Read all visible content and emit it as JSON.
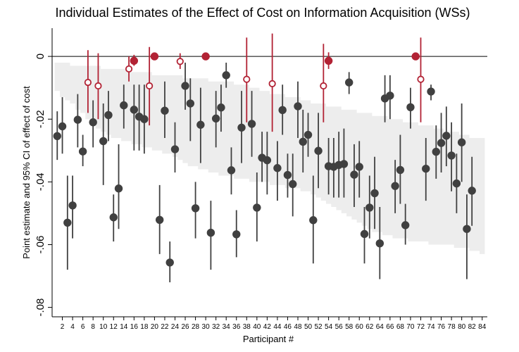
{
  "chart_data": {
    "type": "scatter",
    "title": "Individual Estimates of the Effect of Cost on Information Acquisition (WSs)",
    "xlabel": "Participant #",
    "ylabel": "Point estimate and 95% CI of effect of cost",
    "xlim": [
      0,
      85
    ],
    "ylim": [
      -0.083,
      0.009
    ],
    "yticks": [
      0,
      -0.02,
      -0.04,
      -0.06,
      -0.08
    ],
    "ytick_labels": [
      "0",
      "-.02",
      "-.04",
      "-.06",
      "-.08"
    ],
    "xticks": [
      2,
      4,
      6,
      8,
      10,
      12,
      14,
      16,
      18,
      20,
      22,
      24,
      26,
      28,
      30,
      32,
      34,
      36,
      38,
      40,
      42,
      44,
      46,
      48,
      50,
      52,
      54,
      56,
      58,
      60,
      62,
      64,
      66,
      68,
      70,
      72,
      74,
      76,
      78,
      80,
      82,
      84
    ],
    "reference_line": 0,
    "colors": {
      "significant": "#404040",
      "not_significant": "#b22234",
      "band": "#ededed",
      "zero_line": "#000000"
    },
    "band": [
      [
        1,
        -0.002,
        -0.011
      ],
      [
        2,
        -0.002,
        -0.013
      ],
      [
        3,
        -0.002,
        -0.014
      ],
      [
        4,
        -0.003,
        -0.015
      ],
      [
        5,
        -0.003,
        -0.017
      ],
      [
        6,
        -0.003,
        -0.018
      ],
      [
        7,
        -0.003,
        -0.02
      ],
      [
        8,
        -0.003,
        -0.021
      ],
      [
        9,
        -0.003,
        -0.023
      ],
      [
        10,
        -0.004,
        -0.024
      ],
      [
        11,
        -0.004,
        -0.025
      ],
      [
        12,
        -0.004,
        -0.026
      ],
      [
        13,
        -0.004,
        -0.026
      ],
      [
        14,
        -0.004,
        -0.027
      ],
      [
        15,
        -0.005,
        -0.027
      ],
      [
        16,
        -0.005,
        -0.028
      ],
      [
        17,
        -0.005,
        -0.028
      ],
      [
        18,
        -0.005,
        -0.029
      ],
      [
        19,
        -0.005,
        -0.029
      ],
      [
        20,
        -0.006,
        -0.03
      ],
      [
        21,
        -0.006,
        -0.03
      ],
      [
        22,
        -0.006,
        -0.031
      ],
      [
        23,
        -0.006,
        -0.031
      ],
      [
        24,
        -0.006,
        -0.032
      ],
      [
        25,
        -0.006,
        -0.033
      ],
      [
        26,
        -0.007,
        -0.034
      ],
      [
        27,
        -0.007,
        -0.035
      ],
      [
        28,
        -0.007,
        -0.035
      ],
      [
        29,
        -0.007,
        -0.036
      ],
      [
        30,
        -0.007,
        -0.036
      ],
      [
        31,
        -0.008,
        -0.037
      ],
      [
        32,
        -0.008,
        -0.037
      ],
      [
        33,
        -0.008,
        -0.038
      ],
      [
        34,
        -0.008,
        -0.038
      ],
      [
        35,
        -0.008,
        -0.038
      ],
      [
        36,
        -0.009,
        -0.039
      ],
      [
        37,
        -0.009,
        -0.039
      ],
      [
        38,
        -0.009,
        -0.039
      ],
      [
        39,
        -0.01,
        -0.04
      ],
      [
        40,
        -0.01,
        -0.04
      ],
      [
        41,
        -0.011,
        -0.04
      ],
      [
        42,
        -0.011,
        -0.04
      ],
      [
        43,
        -0.012,
        -0.041
      ],
      [
        44,
        -0.012,
        -0.041
      ],
      [
        45,
        -0.012,
        -0.041
      ],
      [
        46,
        -0.013,
        -0.042
      ],
      [
        47,
        -0.013,
        -0.042
      ],
      [
        48,
        -0.013,
        -0.042
      ],
      [
        49,
        -0.014,
        -0.043
      ],
      [
        50,
        -0.014,
        -0.043
      ],
      [
        51,
        -0.015,
        -0.044
      ],
      [
        52,
        -0.015,
        -0.045
      ],
      [
        53,
        -0.015,
        -0.046
      ],
      [
        54,
        -0.016,
        -0.047
      ],
      [
        55,
        -0.016,
        -0.048
      ],
      [
        56,
        -0.016,
        -0.049
      ],
      [
        57,
        -0.017,
        -0.05
      ],
      [
        58,
        -0.017,
        -0.051
      ],
      [
        59,
        -0.017,
        -0.052
      ],
      [
        60,
        -0.018,
        -0.053
      ],
      [
        61,
        -0.018,
        -0.054
      ],
      [
        62,
        -0.018,
        -0.055
      ],
      [
        63,
        -0.019,
        -0.056
      ],
      [
        64,
        -0.019,
        -0.056
      ],
      [
        65,
        -0.019,
        -0.057
      ],
      [
        66,
        -0.02,
        -0.057
      ],
      [
        67,
        -0.02,
        -0.058
      ],
      [
        68,
        -0.02,
        -0.058
      ],
      [
        69,
        -0.021,
        -0.058
      ],
      [
        70,
        -0.021,
        -0.059
      ],
      [
        71,
        -0.021,
        -0.059
      ],
      [
        72,
        -0.022,
        -0.059
      ],
      [
        73,
        -0.022,
        -0.059
      ],
      [
        74,
        -0.022,
        -0.06
      ],
      [
        75,
        -0.023,
        -0.06
      ],
      [
        76,
        -0.023,
        -0.06
      ],
      [
        77,
        -0.024,
        -0.06
      ],
      [
        78,
        -0.024,
        -0.06
      ],
      [
        79,
        -0.024,
        -0.061
      ],
      [
        80,
        -0.025,
        -0.061
      ],
      [
        81,
        -0.025,
        -0.061
      ],
      [
        82,
        -0.026,
        -0.062
      ],
      [
        83,
        -0.026,
        -0.062
      ],
      [
        84,
        -0.026,
        -0.063
      ]
    ],
    "series": [
      {
        "kind": "significant",
        "points": [
          [
            1,
            -0.0254,
            -0.0175,
            -0.033
          ],
          [
            2,
            -0.0223,
            -0.013,
            -0.031
          ],
          [
            3,
            -0.053,
            -0.038,
            -0.068
          ],
          [
            4,
            -0.0475,
            -0.038,
            -0.058
          ],
          [
            5,
            -0.0202,
            -0.012,
            -0.029
          ],
          [
            6,
            -0.0303,
            -0.025,
            -0.035
          ],
          [
            8,
            -0.021,
            -0.014,
            -0.029
          ],
          [
            10,
            -0.027,
            -0.015,
            -0.041
          ],
          [
            11,
            -0.0187,
            -0.011,
            -0.027
          ],
          [
            12,
            -0.0513,
            -0.044,
            -0.059
          ],
          [
            13,
            -0.0421,
            -0.028,
            -0.055
          ],
          [
            14,
            -0.0156,
            -0.009,
            -0.023
          ],
          [
            16,
            -0.017,
            -0.009,
            -0.03
          ],
          [
            17,
            -0.0192,
            -0.009,
            -0.03
          ],
          [
            18,
            -0.02,
            -0.009,
            -0.031
          ],
          [
            21,
            -0.0521,
            -0.041,
            -0.063
          ],
          [
            22,
            -0.0173,
            -0.008,
            -0.026
          ],
          [
            23,
            -0.0657,
            -0.059,
            -0.072
          ],
          [
            24,
            -0.0296,
            -0.021,
            -0.037
          ],
          [
            26,
            -0.0094,
            -0.002,
            -0.017
          ],
          [
            27,
            -0.015,
            -0.007,
            -0.027
          ],
          [
            28,
            -0.0484,
            -0.04,
            -0.058
          ],
          [
            29,
            -0.0218,
            -0.01,
            -0.034
          ],
          [
            31,
            -0.0562,
            -0.046,
            -0.068
          ],
          [
            32,
            -0.0198,
            -0.011,
            -0.029
          ],
          [
            33,
            -0.0163,
            -0.009,
            -0.024
          ],
          [
            34,
            -0.006,
            -0.002,
            -0.01
          ],
          [
            35,
            -0.0363,
            -0.029,
            -0.044
          ],
          [
            36,
            -0.0567,
            -0.049,
            -0.064
          ],
          [
            37,
            -0.0227,
            -0.011,
            -0.034
          ],
          [
            39,
            -0.0215,
            -0.011,
            -0.032
          ],
          [
            40,
            -0.0482,
            -0.037,
            -0.059
          ],
          [
            41,
            -0.0323,
            -0.024,
            -0.04
          ],
          [
            42,
            -0.0331,
            -0.024,
            -0.044
          ],
          [
            44,
            -0.0356,
            -0.027,
            -0.046
          ],
          [
            45,
            -0.0171,
            -0.009,
            -0.025
          ],
          [
            46,
            -0.0378,
            -0.031,
            -0.045
          ],
          [
            47,
            -0.0407,
            -0.031,
            -0.051
          ],
          [
            48,
            -0.0159,
            -0.008,
            -0.026
          ],
          [
            49,
            -0.0272,
            -0.017,
            -0.037
          ],
          [
            50,
            -0.025,
            -0.018,
            -0.032
          ],
          [
            51,
            -0.0522,
            -0.038,
            -0.066
          ],
          [
            52,
            -0.0301,
            -0.018,
            -0.042
          ],
          [
            54,
            -0.035,
            -0.026,
            -0.044
          ],
          [
            55,
            -0.0352,
            -0.026,
            -0.045
          ],
          [
            56,
            -0.0346,
            -0.024,
            -0.045
          ],
          [
            57,
            -0.0343,
            -0.023,
            -0.045
          ],
          [
            58,
            -0.0083,
            -0.005,
            -0.012
          ],
          [
            59,
            -0.0377,
            -0.028,
            -0.048
          ],
          [
            60,
            -0.0352,
            -0.027,
            -0.045
          ],
          [
            61,
            -0.0566,
            -0.048,
            -0.066
          ],
          [
            62,
            -0.0482,
            -0.038,
            -0.058
          ],
          [
            63,
            -0.0436,
            -0.032,
            -0.055
          ],
          [
            64,
            -0.0596,
            -0.048,
            -0.071
          ],
          [
            65,
            -0.0134,
            -0.006,
            -0.021
          ],
          [
            66,
            -0.0125,
            -0.006,
            -0.02
          ],
          [
            67,
            -0.0413,
            -0.033,
            -0.05
          ],
          [
            68,
            -0.0362,
            -0.025,
            -0.047
          ],
          [
            69,
            -0.0538,
            -0.047,
            -0.06
          ],
          [
            70,
            -0.0162,
            -0.01,
            -0.023
          ],
          [
            73,
            -0.0358,
            -0.026,
            -0.046
          ],
          [
            74,
            -0.0112,
            -0.009,
            -0.014
          ],
          [
            75,
            -0.0304,
            -0.022,
            -0.039
          ],
          [
            76,
            -0.0276,
            -0.018,
            -0.037
          ],
          [
            77,
            -0.0253,
            -0.016,
            -0.035
          ],
          [
            78,
            -0.0316,
            -0.021,
            -0.043
          ],
          [
            79,
            -0.0405,
            -0.031,
            -0.05
          ],
          [
            80,
            -0.0274,
            -0.015,
            -0.04
          ],
          [
            81,
            -0.055,
            -0.044,
            -0.071
          ],
          [
            82,
            -0.0428,
            -0.032,
            -0.054
          ]
        ]
      },
      {
        "kind": "not_significant",
        "points": [
          [
            7,
            -0.0083,
            0.002,
            -0.018
          ],
          [
            9,
            -0.0094,
            0.001,
            -0.02
          ],
          [
            15,
            -0.004,
            0.0,
            -0.008
          ],
          [
            19,
            -0.0094,
            0.003,
            -0.022
          ],
          [
            25,
            -0.0016,
            0.001,
            -0.004
          ],
          [
            38,
            -0.0073,
            0.006,
            -0.021
          ],
          [
            43,
            -0.0087,
            0.0073,
            -0.024
          ],
          [
            53,
            -0.0094,
            0.004,
            -0.021
          ],
          [
            72,
            -0.0073,
            0.006,
            -0.021
          ]
        ],
        "hollow": true
      },
      {
        "kind": "not_significant",
        "points": [
          [
            16,
            -0.0014,
            0.0005,
            -0.003
          ],
          [
            20,
            0.0,
            0.0003,
            -0.0003
          ],
          [
            30,
            0.0,
            0.0003,
            -0.0003
          ],
          [
            54,
            -0.0014,
            0.0013,
            -0.004
          ],
          [
            71,
            0.0,
            0.0003,
            -0.0003
          ]
        ],
        "hollow": false
      }
    ]
  }
}
